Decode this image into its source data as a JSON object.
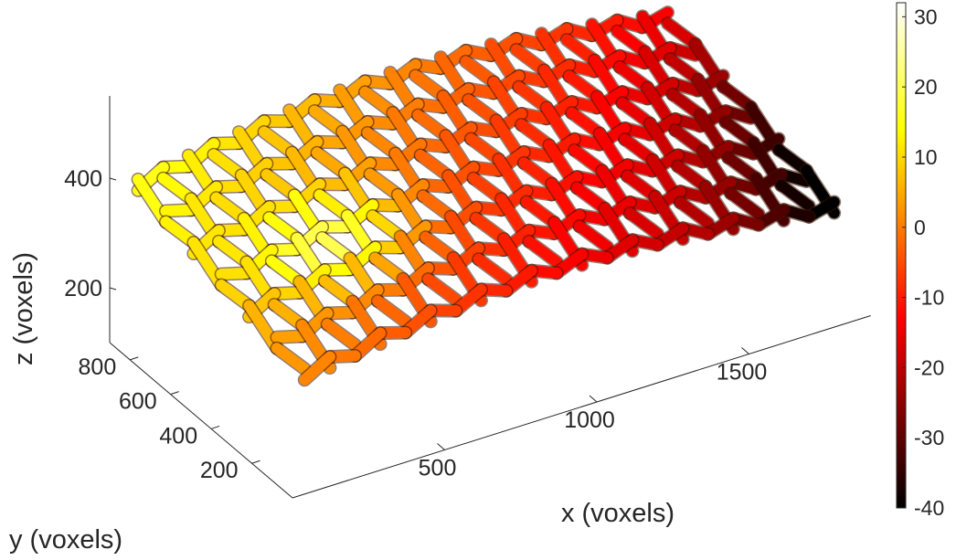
{
  "chart_data": {
    "type": "surface",
    "render": "3d-lattice",
    "colormap": "hot",
    "xlabel": "x (voxels)",
    "ylabel": "y (voxels)",
    "zlabel": "z (voxels)",
    "xticks": [
      500,
      1000,
      1500
    ],
    "yticks": [
      200,
      400,
      600,
      800
    ],
    "zticks": [
      200,
      400
    ],
    "xlim": [
      0,
      1900
    ],
    "ylim": [
      0,
      900
    ],
    "zlim": [
      100,
      550
    ],
    "clim": [
      -40,
      32
    ],
    "colorbar": {
      "ticks": [
        30,
        20,
        10,
        0,
        -10,
        -20,
        -30,
        -40
      ],
      "location": "right"
    },
    "lattice": {
      "warp_direction": "x",
      "weft_direction": "y",
      "x_range": [
        80,
        1820
      ],
      "y_range": [
        60,
        880
      ],
      "z_range": [
        180,
        430
      ],
      "warp_count": 7,
      "weft_count": 22,
      "value_gradient": "highest (about 30) near small x and large y, lowest (about -40) near large x and small y"
    }
  }
}
